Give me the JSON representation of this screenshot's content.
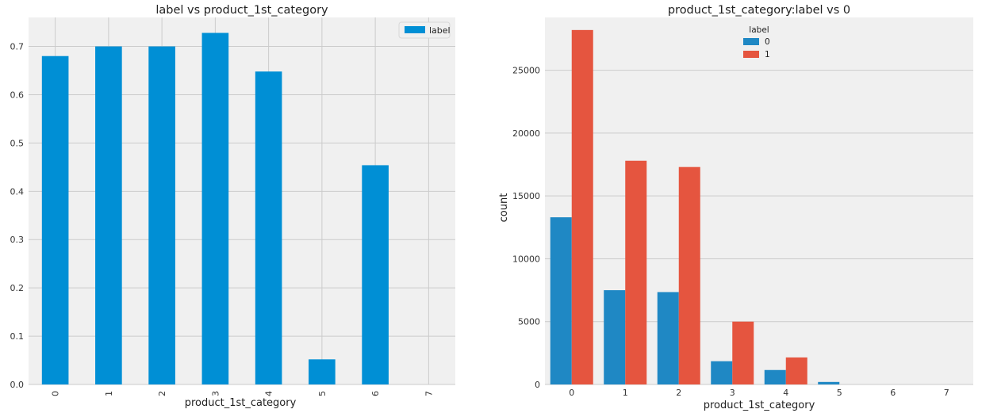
{
  "chart_data": [
    {
      "type": "bar",
      "title": "label vs product_1st_category",
      "xlabel": "product_1st_category",
      "ylabel": "",
      "categories": [
        "0",
        "1",
        "2",
        "3",
        "4",
        "5",
        "6",
        "7"
      ],
      "series": [
        {
          "name": "label",
          "values": [
            0.68,
            0.7,
            0.7,
            0.728,
            0.648,
            0.052,
            0.454,
            0.0
          ]
        }
      ],
      "ylim": [
        0,
        0.76
      ],
      "yticks": [
        0.0,
        0.1,
        0.2,
        0.3,
        0.4,
        0.5,
        0.6,
        0.7
      ],
      "ytick_labels": [
        "0.0",
        "0.1",
        "0.2",
        "0.3",
        "0.4",
        "0.5",
        "0.6",
        "0.7"
      ],
      "x_tick_rotation": 90,
      "grid": true,
      "legend": {
        "position": "top-right",
        "entries": [
          "label"
        ]
      },
      "colors": {
        "bar": "#008fd5",
        "background": "#f0f0f0",
        "grid": "#cbcbcb"
      }
    },
    {
      "type": "bar",
      "title": "product_1st_category:label vs 0",
      "xlabel": "product_1st_category",
      "ylabel": "count",
      "categories": [
        "0",
        "1",
        "2",
        "3",
        "4",
        "5",
        "6",
        "7"
      ],
      "series": [
        {
          "name": "0",
          "values": [
            13300,
            7500,
            7350,
            1850,
            1150,
            200,
            0,
            0
          ]
        },
        {
          "name": "1",
          "values": [
            28200,
            17800,
            17300,
            5000,
            2150,
            0,
            0,
            0
          ]
        }
      ],
      "ylim": [
        0,
        29200
      ],
      "yticks": [
        0,
        5000,
        10000,
        15000,
        20000,
        25000
      ],
      "ytick_labels": [
        "0",
        "5000",
        "10000",
        "15000",
        "20000",
        "25000"
      ],
      "grid": true,
      "legend": {
        "position": "top-center",
        "title": "label",
        "entries": [
          "0",
          "1"
        ]
      },
      "colors": {
        "series": [
          "#1f88c4",
          "#e5553f"
        ],
        "background": "#f0f0f0",
        "grid": "#cbcbcb"
      }
    }
  ]
}
